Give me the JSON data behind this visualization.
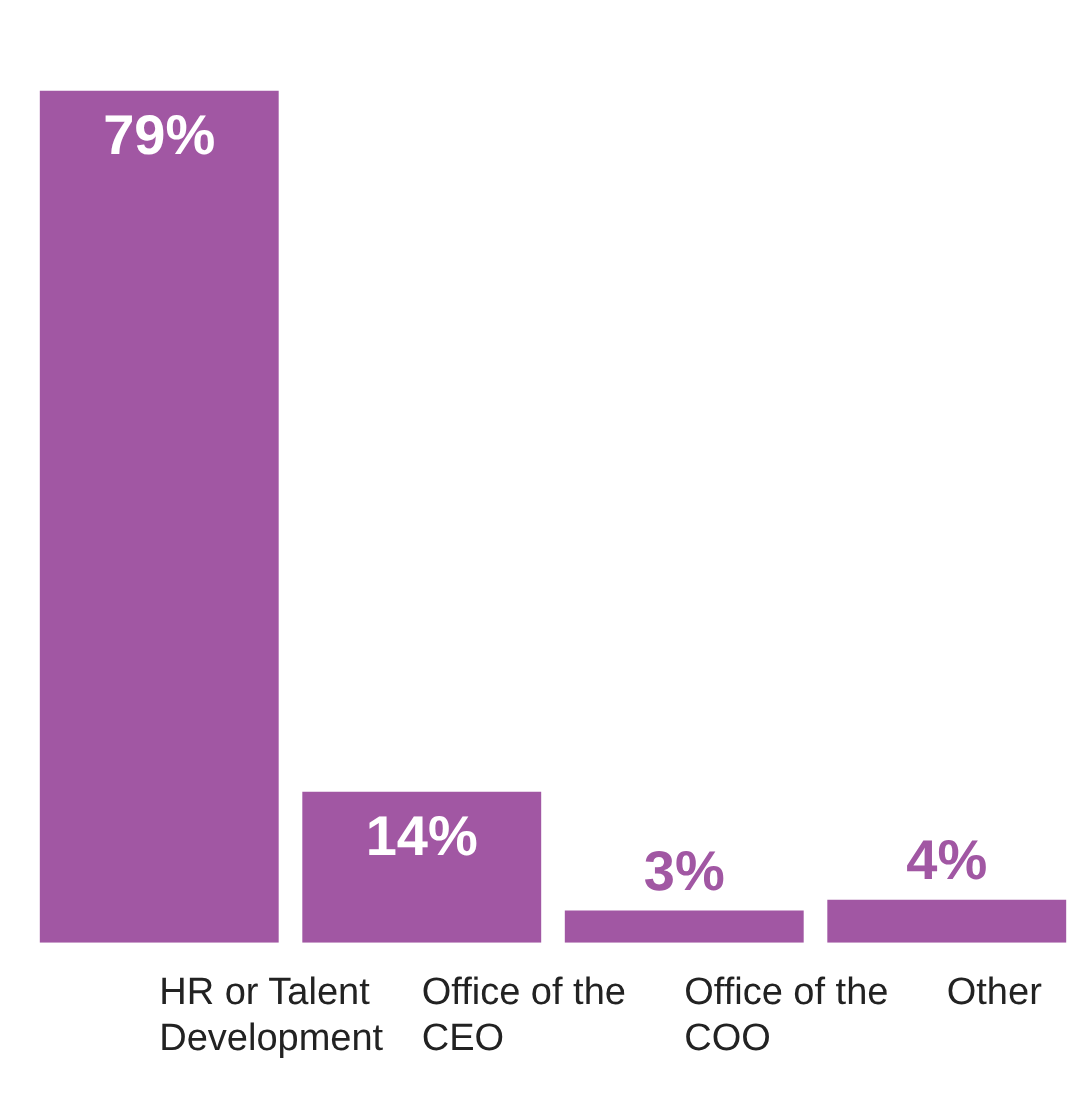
{
  "chart_data": {
    "type": "bar",
    "categories": [
      "HR or Talent Development",
      "Office of the CEO",
      "Office of the COO",
      "Other"
    ],
    "values": [
      79,
      14,
      3,
      4
    ],
    "value_labels": [
      "79%",
      "14%",
      "3%",
      "4%"
    ],
    "color": "#a157a3",
    "grid": false,
    "legend": false
  }
}
